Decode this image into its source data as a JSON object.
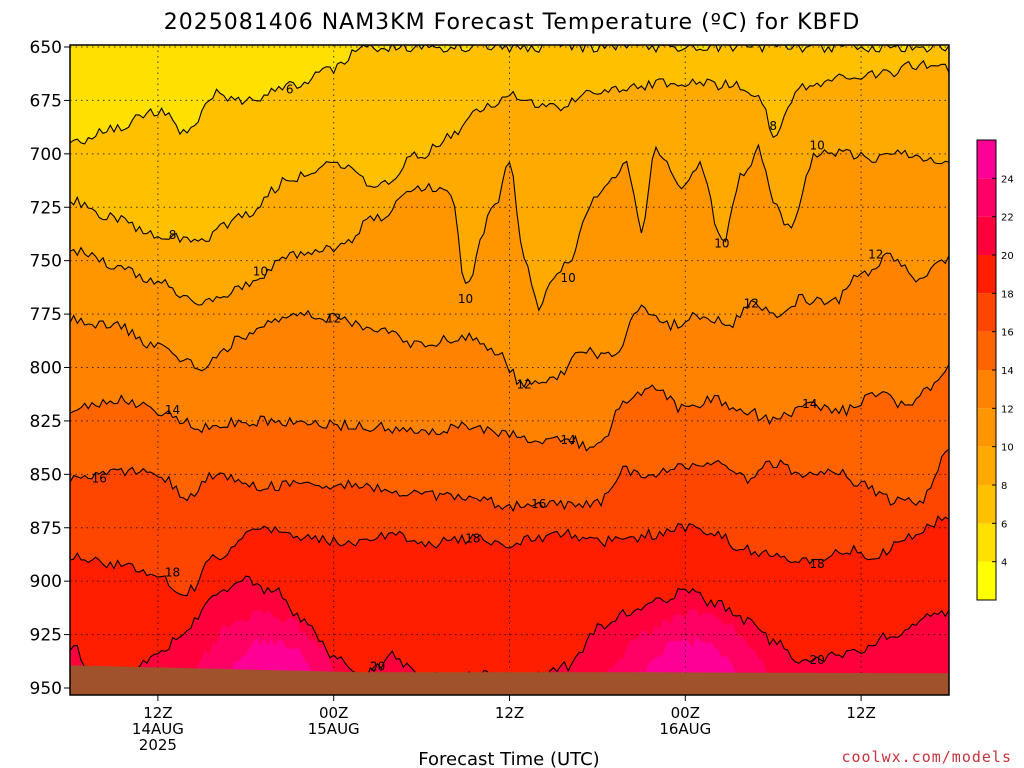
{
  "title": "2025081406 NAM3KM Forecast Temperature (ºC) for KBFD",
  "xlabel": "Forecast Time (UTC)",
  "credit": "coolwx.com/models",
  "chart_data": {
    "type": "heatmap",
    "title": "2025081406 NAM3KM Forecast Temperature (ºC) for KBFD",
    "xlabel": "Forecast Time (UTC)",
    "ylabel": "",
    "y_axis": {
      "ticks": [
        650,
        675,
        700,
        725,
        750,
        775,
        800,
        825,
        850,
        875,
        900,
        925,
        950
      ],
      "reversed": true
    },
    "x_axis": {
      "ticks": [
        {
          "hour": 6,
          "line1": "12Z",
          "line2": "14AUG",
          "line3": "2025"
        },
        {
          "hour": 18,
          "line1": "00Z",
          "line2": "15AUG",
          "line3": ""
        },
        {
          "hour": 30,
          "line1": "12Z",
          "line2": "",
          "line3": ""
        },
        {
          "hour": 42,
          "line1": "00Z",
          "line2": "16AUG",
          "line3": ""
        },
        {
          "hour": 54,
          "line1": "12Z",
          "line2": "",
          "line3": ""
        }
      ],
      "range_hours": [
        0,
        60
      ]
    },
    "colorbar": {
      "labels": [
        4,
        6,
        8,
        10,
        12,
        14,
        16,
        18,
        20,
        22,
        24
      ],
      "colors": [
        "#ffff00",
        "#ffe000",
        "#ffc000",
        "#ffaa00",
        "#ff9600",
        "#ff8200",
        "#ff6400",
        "#ff4600",
        "#ff1e00",
        "#ff003c",
        "#ff0064",
        "#ff0096"
      ],
      "range": [
        2,
        26
      ]
    },
    "contours": [
      {
        "value": 6,
        "label_positions": [
          {
            "hour": 15.0,
            "p": 670
          }
        ]
      },
      {
        "value": 8,
        "label_positions": [
          {
            "hour": 7.0,
            "p": 738
          },
          {
            "hour": 48.0,
            "p": 687
          }
        ]
      },
      {
        "value": 10,
        "label_positions": [
          {
            "hour": 13.0,
            "p": 755
          },
          {
            "hour": 27.0,
            "p": 768
          },
          {
            "hour": 34.0,
            "p": 758
          },
          {
            "hour": 44.5,
            "p": 742
          },
          {
            "hour": 51.0,
            "p": 696
          }
        ]
      },
      {
        "value": 12,
        "label_positions": [
          {
            "hour": 18.0,
            "p": 777
          },
          {
            "hour": 31.0,
            "p": 808
          },
          {
            "hour": 46.5,
            "p": 770
          },
          {
            "hour": 55.0,
            "p": 747
          }
        ]
      },
      {
        "value": 14,
        "label_positions": [
          {
            "hour": 7.0,
            "p": 820
          },
          {
            "hour": 34.0,
            "p": 834
          },
          {
            "hour": 50.5,
            "p": 817
          }
        ]
      },
      {
        "value": 16,
        "label_positions": [
          {
            "hour": 2.0,
            "p": 852
          },
          {
            "hour": 32.0,
            "p": 864
          }
        ]
      },
      {
        "value": 18,
        "label_positions": [
          {
            "hour": 7.0,
            "p": 896
          },
          {
            "hour": 27.5,
            "p": 880
          },
          {
            "hour": 51.0,
            "p": 892
          }
        ]
      },
      {
        "value": 20,
        "label_positions": [
          {
            "hour": 21.0,
            "p": 940
          },
          {
            "hour": 51.0,
            "p": 937
          }
        ]
      }
    ],
    "terrain": {
      "surface_pressure_hpa": 945,
      "color": "#a0522d"
    },
    "grid": true,
    "legend": "right colorbar"
  }
}
